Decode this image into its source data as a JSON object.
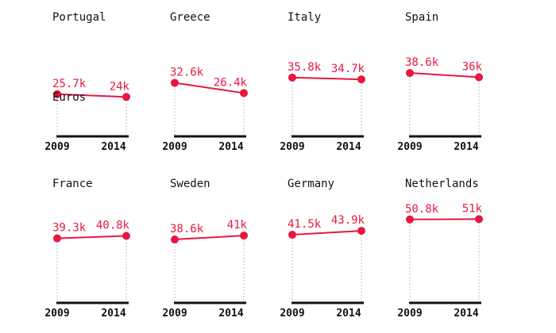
{
  "chart_data": {
    "type": "line",
    "x": [
      "2009",
      "2014"
    ],
    "unit_label": "Euros",
    "ylim": [
      0,
      56000
    ],
    "accent_color": "#e8173f",
    "axis_color": "#111111",
    "panels": [
      {
        "country": "Portugal",
        "values": [
          25700,
          24000
        ],
        "labels": [
          "25.7k",
          "24k"
        ]
      },
      {
        "country": "Greece",
        "values": [
          32600,
          26400
        ],
        "labels": [
          "32.6k",
          "26.4k"
        ]
      },
      {
        "country": "Italy",
        "values": [
          35800,
          34700
        ],
        "labels": [
          "35.8k",
          "34.7k"
        ]
      },
      {
        "country": "Spain",
        "values": [
          38600,
          36000
        ],
        "labels": [
          "38.6k",
          "36k"
        ]
      },
      {
        "country": "France",
        "values": [
          39300,
          40800
        ],
        "labels": [
          "39.3k",
          "40.8k"
        ]
      },
      {
        "country": "Sweden",
        "values": [
          38600,
          41000
        ],
        "labels": [
          "38.6k",
          "41k"
        ]
      },
      {
        "country": "Germany",
        "values": [
          41500,
          43900
        ],
        "labels": [
          "41.5k",
          "43.9k"
        ]
      },
      {
        "country": "Netherlands",
        "values": [
          50800,
          51000
        ],
        "labels": [
          "50.8k",
          "51k"
        ]
      }
    ]
  }
}
